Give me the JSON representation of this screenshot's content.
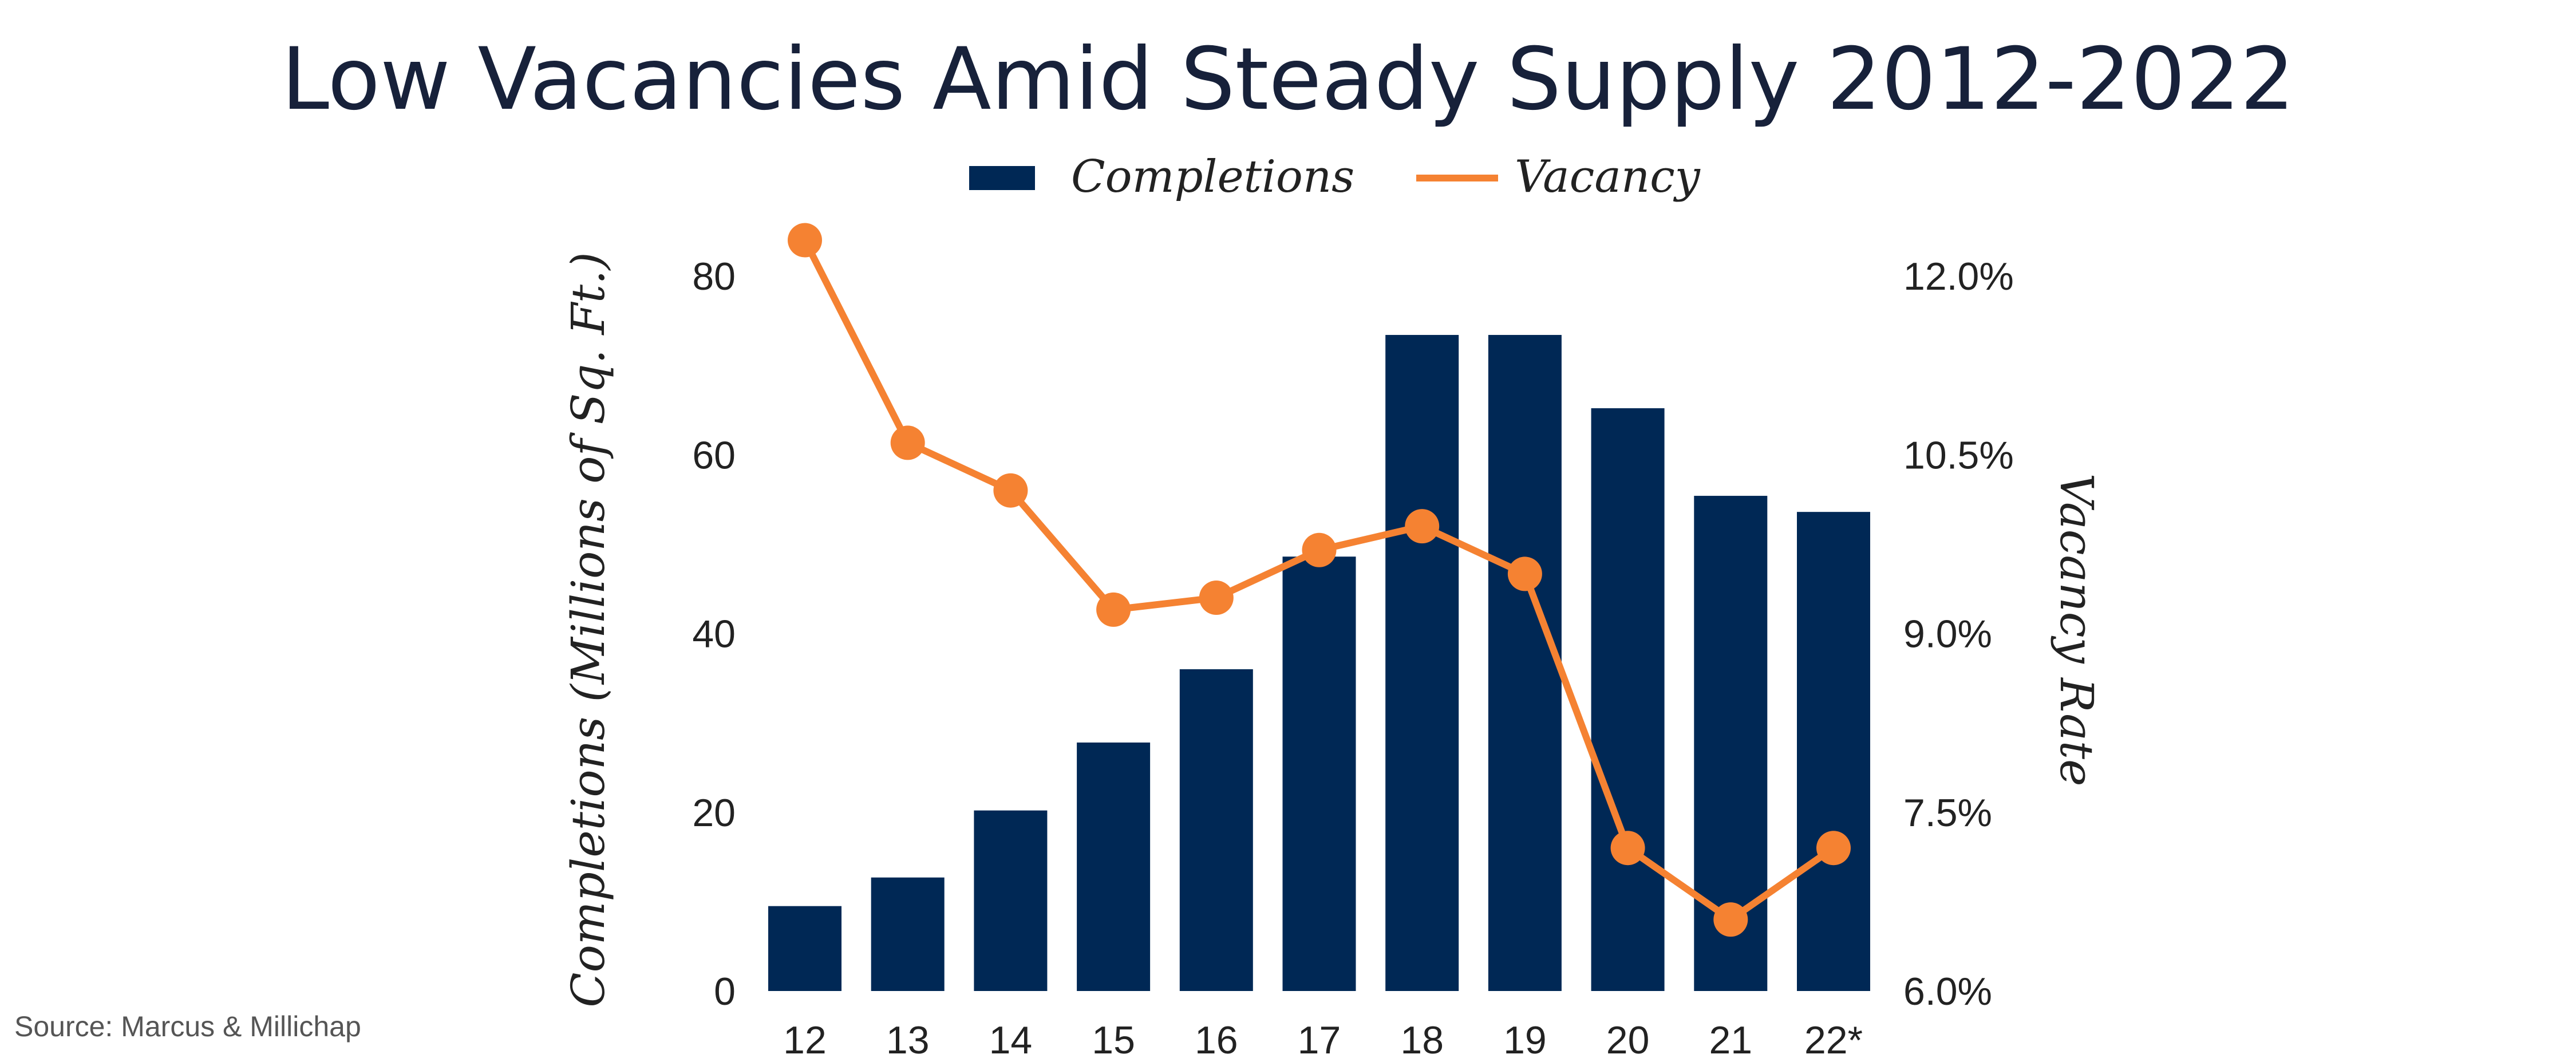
{
  "chart_data": {
    "type": "bar+line",
    "title": "Low Vacancies Amid Steady Supply 2012-2022",
    "categories": [
      "12",
      "13",
      "14",
      "15",
      "16",
      "17",
      "18",
      "19",
      "20",
      "21",
      "22*"
    ],
    "series": [
      {
        "name": "Completions",
        "type": "bar",
        "axis": "left",
        "color": "#002855",
        "values": [
          9.5,
          12.7,
          20.2,
          27.8,
          36.0,
          48.6,
          73.4,
          73.4,
          65.2,
          55.4,
          53.6
        ]
      },
      {
        "name": "Vacancy",
        "type": "line",
        "axis": "right",
        "color": "#F58232",
        "values": [
          12.3,
          10.6,
          10.2,
          9.2,
          9.3,
          9.7,
          9.9,
          9.5,
          7.2,
          6.6,
          7.2
        ]
      }
    ],
    "ylabel": "Completions (Millions of Sq. Ft.)",
    "ylim": [
      0,
      80
    ],
    "yticks": [
      "0",
      "20",
      "40",
      "60",
      "80"
    ],
    "y2label": "Vacancy Rate",
    "y2lim": [
      6.0,
      12.0
    ],
    "y2ticks": [
      "6.0%",
      "7.5%",
      "9.0%",
      "10.5%",
      "12.0%"
    ],
    "grid": false,
    "legend_placement": "top-center"
  },
  "source": "Source: Marcus & Millichap"
}
